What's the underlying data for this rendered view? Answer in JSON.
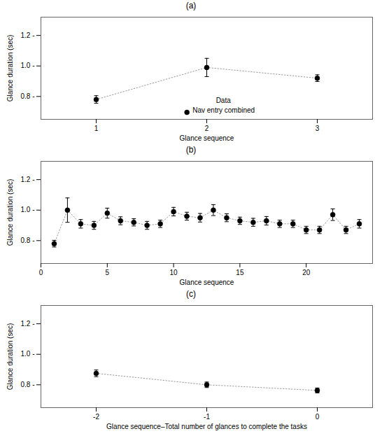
{
  "chart_data": [
    {
      "type": "errorbar",
      "title": "(a)",
      "x_label": "Glance sequence",
      "y_label": "Glance duration (sec)",
      "series": [
        {
          "name": "Nav entry combined",
          "color": "#000000",
          "marker": "circle",
          "line_style": "dotted",
          "x": [
            1,
            2,
            3
          ],
          "values": [
            0.78,
            0.99,
            0.92
          ],
          "yerr": [
            0.025,
            0.06,
            0.022
          ]
        }
      ],
      "legend": "lower center",
      "legend_title": "Data",
      "xlim": [
        0.5,
        3.5
      ],
      "ylim": [
        0.65,
        1.32
      ],
      "xticks": [
        1,
        2,
        3
      ],
      "yticks": [
        {
          "value": 0.8,
          "label": "0.8 -"
        },
        {
          "value": 1.0,
          "label": "1.0 -"
        },
        {
          "value": 1.2,
          "label": "1.2 -"
        }
      ]
    },
    {
      "type": "errorbar",
      "title": "(b)",
      "x_label": "Glance sequence",
      "y_label": "Glance duration (sec)",
      "color": "#000000",
      "marker": "circle",
      "line_style": "dotted",
      "x": [
        1,
        2,
        3,
        4,
        5,
        6,
        7,
        8,
        9,
        10,
        11,
        12,
        13,
        14,
        15,
        16,
        17,
        18,
        19,
        20,
        21,
        22,
        23,
        24
      ],
      "values": [
        0.78,
        1.0,
        0.91,
        0.9,
        0.98,
        0.93,
        0.92,
        0.9,
        0.91,
        0.99,
        0.96,
        0.95,
        1.0,
        0.95,
        0.93,
        0.92,
        0.93,
        0.91,
        0.91,
        0.87,
        0.87,
        0.97,
        0.87,
        0.91
      ],
      "yerr": [
        0.022,
        0.08,
        0.028,
        0.026,
        0.033,
        0.026,
        0.024,
        0.026,
        0.024,
        0.028,
        0.026,
        0.028,
        0.036,
        0.026,
        0.024,
        0.026,
        0.028,
        0.024,
        0.024,
        0.024,
        0.024,
        0.038,
        0.024,
        0.028
      ],
      "xlim": [
        0,
        25
      ],
      "ylim": [
        0.65,
        1.32
      ],
      "xticks": [
        0,
        5,
        10,
        15,
        20
      ],
      "yticks": [
        {
          "value": 0.8,
          "label": "0.8 -"
        },
        {
          "value": 1.0,
          "label": "1.0 -"
        },
        {
          "value": 1.2,
          "label": "1.2 -"
        }
      ]
    },
    {
      "type": "errorbar",
      "title": "(c)",
      "x_label": "Glance sequence–Total number of glances to complete the tasks",
      "y_label": "Glance duration (sec)",
      "color": "#000000",
      "marker": "circle",
      "line_style": "dotted",
      "x": [
        -2,
        -1,
        0
      ],
      "values": [
        0.875,
        0.8,
        0.763
      ],
      "yerr": [
        0.022,
        0.018,
        0.016
      ],
      "xlim": [
        -2.5,
        0.5
      ],
      "ylim": [
        0.65,
        1.32
      ],
      "xticks": [
        -2,
        -1,
        0
      ],
      "yticks": [
        {
          "value": 0.8,
          "label": "0.8 -"
        },
        {
          "value": 1.0,
          "label": "1.0 -"
        },
        {
          "value": 1.2,
          "label": "1.2 -"
        }
      ]
    }
  ]
}
